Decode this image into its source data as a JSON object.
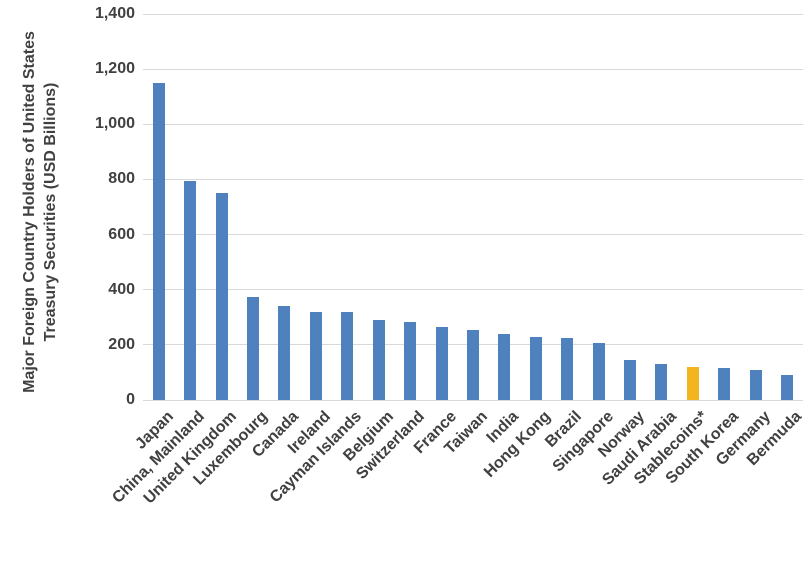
{
  "chart_data": {
    "type": "bar",
    "title": "",
    "ylabel_line1": "Major Foreign Country Holders of United States",
    "ylabel_line2": "Treasury Securities  (USD Billions)",
    "xlabel": "",
    "categories": [
      "Japan",
      "China, Mainland",
      "United Kingdom",
      "Luxembourg",
      "Canada",
      "Ireland",
      "Cayman Islands",
      "Belgium",
      "Switzerland",
      "France",
      "Taiwan",
      "India",
      "Hong Kong",
      "Brazil",
      "Singapore",
      "Norway",
      "Saudi Arabia",
      "Stablecoins*",
      "South Korea",
      "Germany",
      "Bermuda"
    ],
    "values": [
      1150,
      795,
      750,
      375,
      340,
      320,
      318,
      290,
      283,
      265,
      255,
      240,
      230,
      226,
      205,
      145,
      130,
      120,
      117,
      110,
      90
    ],
    "highlight_category": "Stablecoins*",
    "ylim": [
      0,
      1400
    ],
    "yticks": [
      {
        "value": 0,
        "label": "0"
      },
      {
        "value": 200,
        "label": "200"
      },
      {
        "value": 400,
        "label": "400"
      },
      {
        "value": 600,
        "label": "600"
      },
      {
        "value": 800,
        "label": "800"
      },
      {
        "value": 1000,
        "label": "1,000"
      },
      {
        "value": 1200,
        "label": "1,200"
      },
      {
        "value": 1400,
        "label": "1,400"
      }
    ],
    "grid": "horizontal",
    "legend_position": "none",
    "colors": {
      "bar_default": "#4e81bd",
      "bar_highlight": "#f2b51d",
      "gridline": "#d9d9d9",
      "text": "#404040",
      "background": "#ffffff"
    }
  }
}
